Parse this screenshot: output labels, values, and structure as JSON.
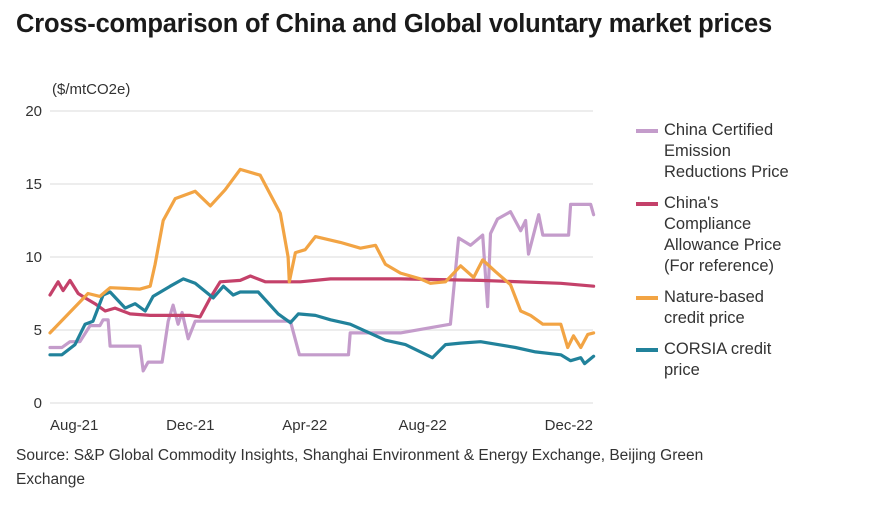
{
  "chart_data": {
    "type": "line",
    "title": "Cross-comparison of China and Global voluntary market prices",
    "ylabel": "($/mtCO2e)",
    "xlabel": "",
    "ylim": [
      0,
      20
    ],
    "yticks": [
      0,
      5,
      10,
      15,
      20
    ],
    "x_unit": "months since Aug 2021",
    "xlim": [
      0,
      18.7
    ],
    "xticks": [
      {
        "label": "Aug-21",
        "value": 0
      },
      {
        "label": "Dec-21",
        "value": 4
      },
      {
        "label": "Apr-22",
        "value": 8
      },
      {
        "label": "Aug-22",
        "value": 12
      },
      {
        "label": "Dec-22",
        "value": 16
      }
    ],
    "grid": true,
    "legend_position": "right",
    "series": [
      {
        "name": "China Certified Emission Reductions Price",
        "color": "#C49CCB",
        "points": [
          [
            0,
            3.8
          ],
          [
            0.41,
            3.8
          ],
          [
            0.69,
            4.2
          ],
          [
            1.03,
            4.2
          ],
          [
            1.38,
            5.3
          ],
          [
            1.72,
            5.3
          ],
          [
            1.83,
            5.7
          ],
          [
            2.0,
            5.7
          ],
          [
            2.07,
            3.9
          ],
          [
            3.1,
            3.9
          ],
          [
            3.21,
            2.2
          ],
          [
            3.38,
            2.8
          ],
          [
            3.86,
            2.8
          ],
          [
            4.07,
            5.6
          ],
          [
            4.24,
            6.7
          ],
          [
            4.41,
            5.4
          ],
          [
            4.55,
            6.2
          ],
          [
            4.76,
            4.4
          ],
          [
            5.0,
            5.6
          ],
          [
            8.28,
            5.6
          ],
          [
            8.59,
            3.3
          ],
          [
            10.28,
            3.3
          ],
          [
            10.34,
            4.8
          ],
          [
            12.07,
            4.8
          ],
          [
            13.79,
            5.4
          ],
          [
            14.07,
            11.3
          ],
          [
            14.48,
            10.8
          ],
          [
            14.9,
            11.5
          ],
          [
            15.07,
            6.6
          ],
          [
            15.17,
            11.6
          ],
          [
            15.41,
            12.6
          ],
          [
            15.86,
            13.1
          ],
          [
            16.21,
            11.8
          ],
          [
            16.38,
            12.5
          ],
          [
            16.48,
            10.2
          ],
          [
            16.83,
            12.9
          ],
          [
            16.97,
            11.5
          ],
          [
            17.86,
            11.5
          ],
          [
            17.93,
            13.6
          ],
          [
            18.62,
            13.6
          ],
          [
            18.72,
            12.9
          ]
        ]
      },
      {
        "name": "China's Compliance Allowance Price (For reference)",
        "color": "#C4416A",
        "points": [
          [
            0,
            7.4
          ],
          [
            0.28,
            8.3
          ],
          [
            0.45,
            7.7
          ],
          [
            0.69,
            8.4
          ],
          [
            0.97,
            7.5
          ],
          [
            1.21,
            7.2
          ],
          [
            1.55,
            6.8
          ],
          [
            1.9,
            6.3
          ],
          [
            2.24,
            6.5
          ],
          [
            2.76,
            6.1
          ],
          [
            3.45,
            6.0
          ],
          [
            4.83,
            6.0
          ],
          [
            5.17,
            5.9
          ],
          [
            5.52,
            7.2
          ],
          [
            5.86,
            8.3
          ],
          [
            6.55,
            8.4
          ],
          [
            6.9,
            8.7
          ],
          [
            7.41,
            8.3
          ],
          [
            8.62,
            8.3
          ],
          [
            9.66,
            8.5
          ],
          [
            12.07,
            8.5
          ],
          [
            14.83,
            8.4
          ],
          [
            17.59,
            8.2
          ],
          [
            18.72,
            8.0
          ]
        ]
      },
      {
        "name": "Nature-based credit price",
        "color": "#F2A444",
        "points": [
          [
            0,
            4.8
          ],
          [
            1.31,
            7.5
          ],
          [
            1.72,
            7.3
          ],
          [
            2.07,
            7.9
          ],
          [
            3.1,
            7.8
          ],
          [
            3.45,
            8.0
          ],
          [
            3.62,
            9.5
          ],
          [
            3.9,
            12.5
          ],
          [
            4.31,
            14.0
          ],
          [
            5.0,
            14.5
          ],
          [
            5.52,
            13.5
          ],
          [
            6.03,
            14.6
          ],
          [
            6.55,
            16.0
          ],
          [
            7.24,
            15.6
          ],
          [
            7.93,
            13.0
          ],
          [
            8.2,
            10.0
          ],
          [
            8.24,
            8.3
          ],
          [
            8.45,
            10.3
          ],
          [
            8.79,
            10.5
          ],
          [
            9.14,
            11.4
          ],
          [
            10.0,
            11.0
          ],
          [
            10.69,
            10.6
          ],
          [
            11.21,
            10.8
          ],
          [
            11.55,
            9.5
          ],
          [
            12.07,
            8.9
          ],
          [
            12.76,
            8.5
          ],
          [
            13.1,
            8.2
          ],
          [
            13.62,
            8.3
          ],
          [
            14.14,
            9.4
          ],
          [
            14.59,
            8.6
          ],
          [
            14.9,
            9.8
          ],
          [
            15.34,
            9.0
          ],
          [
            15.86,
            8.1
          ],
          [
            16.21,
            6.3
          ],
          [
            16.55,
            6.0
          ],
          [
            16.97,
            5.4
          ],
          [
            17.59,
            5.4
          ],
          [
            17.83,
            3.8
          ],
          [
            18.03,
            4.6
          ],
          [
            18.28,
            3.8
          ],
          [
            18.52,
            4.7
          ],
          [
            18.72,
            4.8
          ]
        ]
      },
      {
        "name": "CORSIA credit price",
        "color": "#21829B",
        "points": [
          [
            0,
            3.3
          ],
          [
            0.41,
            3.3
          ],
          [
            0.86,
            4.0
          ],
          [
            1.21,
            5.4
          ],
          [
            1.48,
            5.6
          ],
          [
            1.83,
            7.4
          ],
          [
            2.07,
            7.6
          ],
          [
            2.59,
            6.5
          ],
          [
            2.93,
            6.8
          ],
          [
            3.28,
            6.3
          ],
          [
            3.55,
            7.3
          ],
          [
            4.14,
            8.0
          ],
          [
            4.59,
            8.5
          ],
          [
            5.0,
            8.2
          ],
          [
            5.62,
            7.2
          ],
          [
            5.97,
            8.0
          ],
          [
            6.31,
            7.4
          ],
          [
            6.55,
            7.6
          ],
          [
            7.17,
            7.6
          ],
          [
            7.86,
            6.1
          ],
          [
            8.28,
            5.5
          ],
          [
            8.55,
            6.1
          ],
          [
            9.14,
            6.0
          ],
          [
            9.66,
            5.7
          ],
          [
            10.34,
            5.4
          ],
          [
            11.55,
            4.3
          ],
          [
            12.24,
            4.0
          ],
          [
            13.17,
            3.1
          ],
          [
            13.62,
            4.0
          ],
          [
            14.14,
            4.1
          ],
          [
            14.83,
            4.2
          ],
          [
            16.03,
            3.8
          ],
          [
            16.72,
            3.5
          ],
          [
            17.59,
            3.3
          ],
          [
            17.93,
            2.9
          ],
          [
            18.28,
            3.1
          ],
          [
            18.41,
            2.7
          ],
          [
            18.72,
            3.2
          ]
        ]
      }
    ]
  },
  "source": "Source: S&P Global Commodity Insights, Shanghai Environment & Energy Exchange, Beijing Green Exchange"
}
